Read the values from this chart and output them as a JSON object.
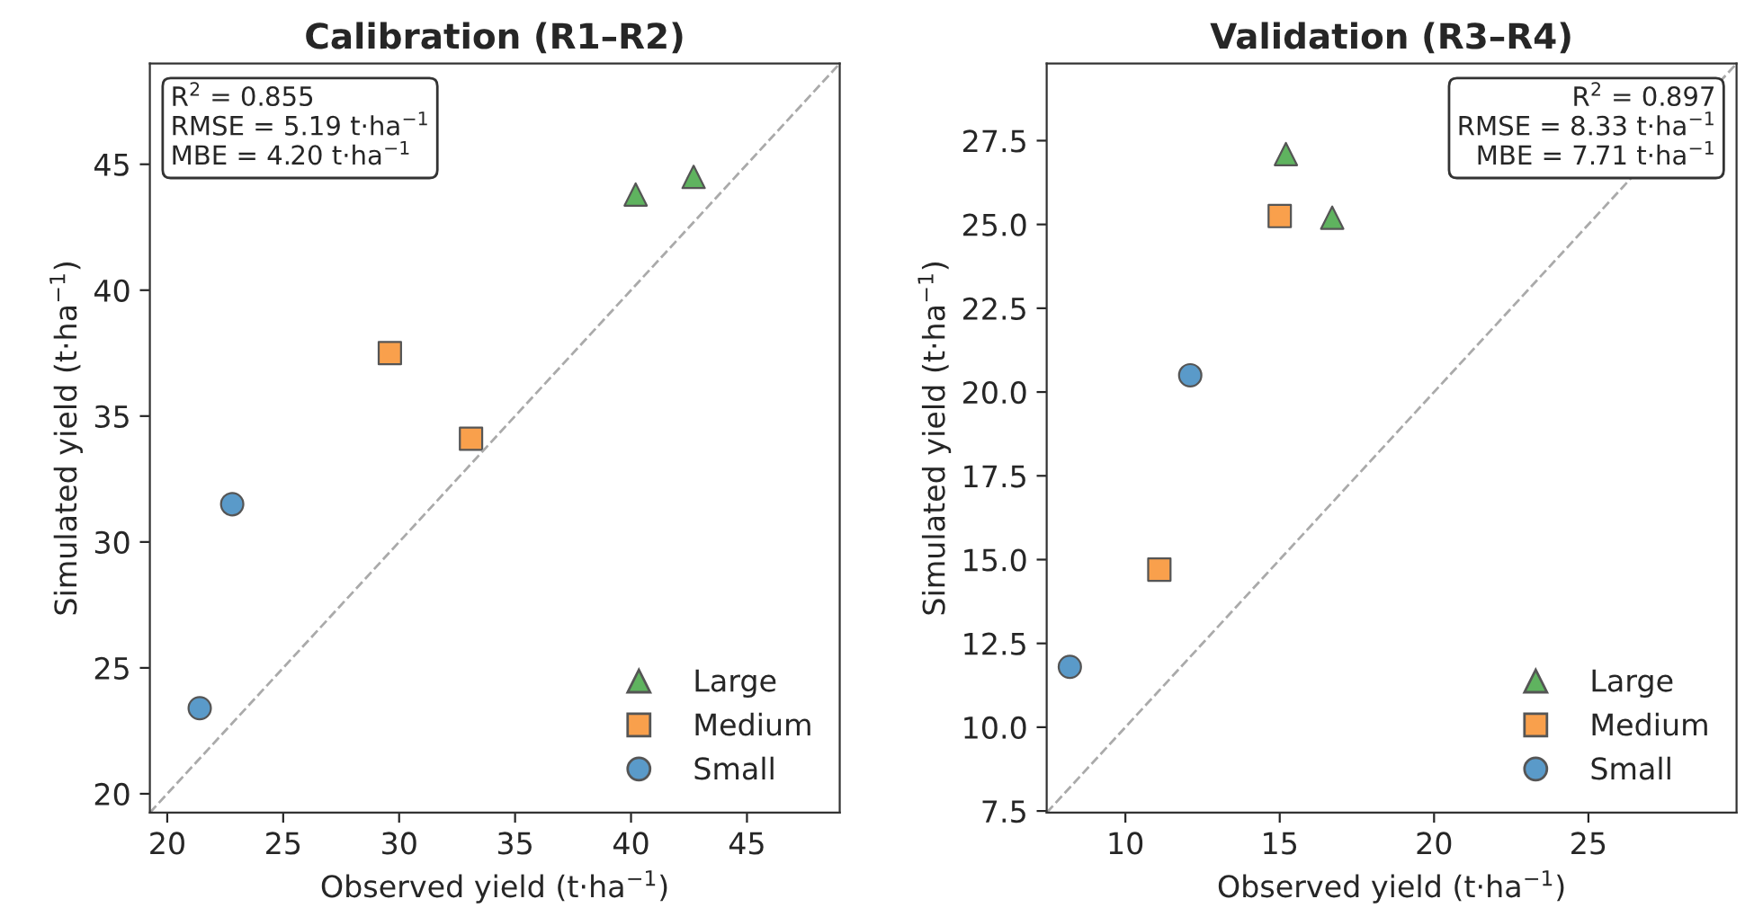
{
  "chart_data": [
    {
      "type": "scatter",
      "title": "Calibration (R1–R2)",
      "xlabel": "Observed yield (t·ha$^{−1}$)",
      "ylabel": "Simulated yield (t·ha$^{−1}$)",
      "xlim": [
        19.25,
        49
      ],
      "ylim": [
        19.25,
        49
      ],
      "xticks": [
        20,
        25,
        30,
        35,
        40,
        45
      ],
      "yticks": [
        20,
        25,
        30,
        35,
        40,
        45
      ],
      "grid": false,
      "legend": "bottom right",
      "annotations": [
        "R$^{2}$ = 0.855\nRMSE = 5.19 t·ha$^{−1}$\nMBE = 4.20 t·ha$^{−1}$"
      ],
      "series": [
        {
          "type": "line",
          "color": "#aaaaaa",
          "line_style": "dashed",
          "marker": "none",
          "x": [
            19.25,
            49
          ],
          "values": [
            19.25,
            49
          ]
        },
        {
          "name": "Large",
          "color": "#5fb35f",
          "marker": "triangle",
          "x": [
            40.2,
            42.7
          ],
          "values": [
            43.8,
            44.5
          ]
        },
        {
          "name": "Medium",
          "color": "#f9a04c",
          "marker": "square",
          "x": [
            29.6,
            33.1
          ],
          "values": [
            37.5,
            34.1
          ]
        },
        {
          "name": "Small",
          "color": "#5a9ac9",
          "marker": "circle",
          "x": [
            21.4,
            22.8
          ],
          "values": [
            23.4,
            31.5
          ]
        }
      ]
    },
    {
      "type": "scatter",
      "title": "Validation (R3–R4)",
      "xlabel": "Observed yield (t·ha$^{−1}$)",
      "ylabel": "Simulated yield (t·ha$^{−1}$)",
      "xlim": [
        7.45,
        29.8
      ],
      "ylim": [
        7.45,
        29.8
      ],
      "xticks": [
        10,
        15,
        20,
        25
      ],
      "yticks": [
        {
          "value": 7.5,
          "label": "7.5"
        },
        {
          "value": 10,
          "label": "10.0"
        },
        {
          "value": 12.5,
          "label": "12.5"
        },
        {
          "value": 15,
          "label": "15.0"
        },
        {
          "value": 17.5,
          "label": "17.5"
        },
        {
          "value": 20,
          "label": "20.0"
        },
        {
          "value": 22.5,
          "label": "22.5"
        },
        {
          "value": 25,
          "label": "25.0"
        },
        {
          "value": 27.5,
          "label": "27.5"
        }
      ],
      "grid": false,
      "legend": "bottom right",
      "annotations": [
        "R$^{2}$ = 0.897\nRMSE = 8.33 t·ha$^{−1}$\nMBE = 7.71 t·ha$^{−1}$"
      ],
      "series": [
        {
          "type": "line",
          "color": "#aaaaaa",
          "line_style": "dashed",
          "marker": "none",
          "x": [
            7.45,
            29.8
          ],
          "values": [
            7.45,
            29.8
          ]
        },
        {
          "name": "Large",
          "color": "#5fb35f",
          "marker": "triangle",
          "x": [
            15.2,
            16.7
          ],
          "values": [
            27.1,
            25.2
          ]
        },
        {
          "name": "Medium",
          "color": "#f9a04c",
          "marker": "square",
          "x": [
            11.1,
            15.0
          ],
          "values": [
            14.7,
            25.25
          ]
        },
        {
          "name": "Small",
          "color": "#5a9ac9",
          "marker": "circle",
          "x": [
            8.2,
            12.1
          ],
          "values": [
            11.8,
            20.5
          ]
        }
      ]
    }
  ]
}
